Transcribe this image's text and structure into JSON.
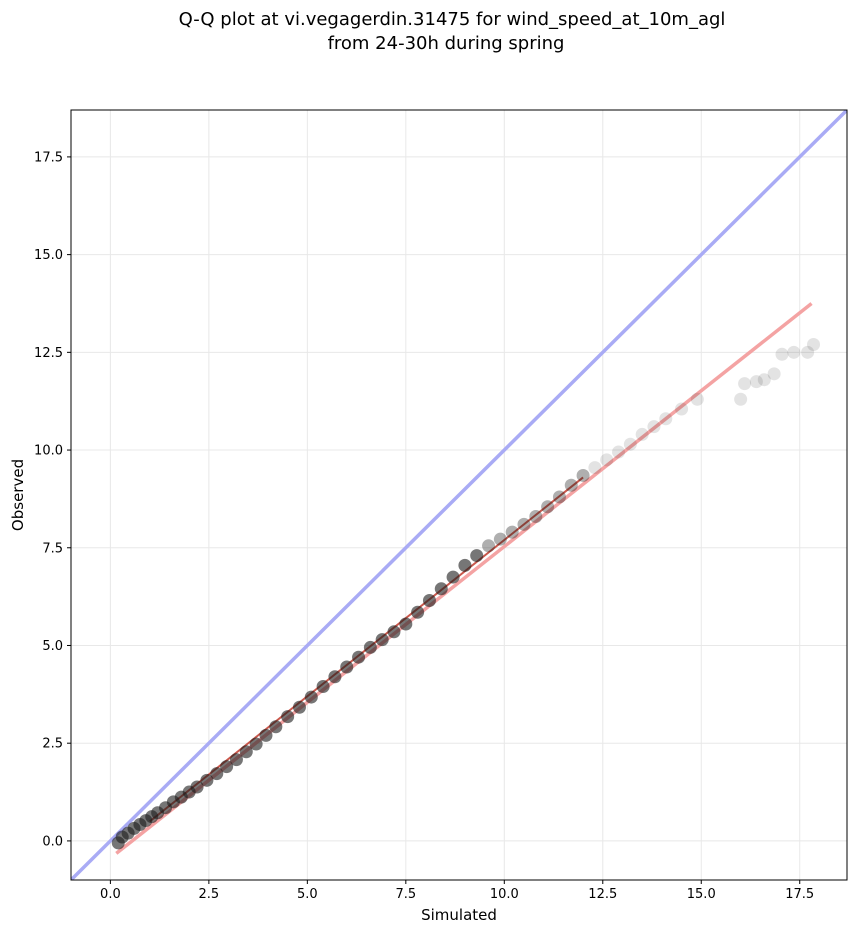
{
  "chart_data": {
    "type": "scatter",
    "title": [
      "Q-Q plot at vi.vegagerdin.31475 for wind_speed_at_10m_agl",
      "from 24-30h during spring"
    ],
    "xlabel": "Simulated",
    "ylabel": "Observed",
    "xlim": [
      -1.0,
      18.7
    ],
    "ylim": [
      -1.0,
      18.7
    ],
    "x_ticks": [
      0.0,
      2.5,
      5.0,
      7.5,
      10.0,
      12.5,
      15.0,
      17.5
    ],
    "y_ticks": [
      0.0,
      2.5,
      5.0,
      7.5,
      10.0,
      12.5,
      15.0,
      17.5
    ],
    "x_tick_labels": [
      "0.0",
      "2.5",
      "5.0",
      "7.5",
      "10.0",
      "12.5",
      "15.0",
      "17.5"
    ],
    "y_tick_labels": [
      "0.0",
      "2.5",
      "5.0",
      "7.5",
      "10.0",
      "12.5",
      "15.0",
      "17.5"
    ],
    "grid": true,
    "identity_line": {
      "color": "#a9abf5",
      "from": [
        -1.0,
        -1.0
      ],
      "to": [
        18.7,
        18.7
      ]
    },
    "fit_line": {
      "color": "#f4a3a3",
      "x": [
        0.15,
        17.8
      ],
      "y": [
        -0.32,
        13.75
      ]
    },
    "fit_center_line": {
      "color": "#c0392b",
      "x": [
        1.0,
        12.0
      ],
      "y": [
        0.5,
        9.3
      ]
    },
    "point_color": "#1a1a1a",
    "quantiles": {
      "x": [
        0.2,
        0.3,
        0.45,
        0.6,
        0.75,
        0.9,
        1.05,
        1.2,
        1.4,
        1.6,
        1.8,
        2.0,
        2.2,
        2.45,
        2.7,
        2.95,
        3.2,
        3.45,
        3.7,
        3.95,
        4.2,
        4.5,
        4.8,
        5.1,
        5.4,
        5.7,
        6.0,
        6.3,
        6.6,
        6.9,
        7.2,
        7.5,
        7.8,
        8.1,
        8.4,
        8.7,
        9.0,
        9.3,
        9.6,
        9.9,
        10.2,
        10.5,
        10.8,
        11.1,
        11.4,
        11.7,
        12.0,
        12.3,
        12.6,
        12.9,
        13.2,
        13.5,
        13.8,
        14.1,
        14.5,
        14.9,
        16.0,
        16.1,
        16.4,
        16.6,
        16.85,
        17.05,
        17.35,
        17.7,
        17.85
      ],
      "y": [
        -0.05,
        0.1,
        0.2,
        0.32,
        0.42,
        0.52,
        0.62,
        0.72,
        0.85,
        1.0,
        1.12,
        1.25,
        1.38,
        1.55,
        1.72,
        1.9,
        2.08,
        2.28,
        2.48,
        2.7,
        2.92,
        3.18,
        3.42,
        3.68,
        3.95,
        4.2,
        4.45,
        4.7,
        4.95,
        5.15,
        5.35,
        5.55,
        5.85,
        6.15,
        6.45,
        6.75,
        7.05,
        7.3,
        7.55,
        7.72,
        7.9,
        8.1,
        8.3,
        8.55,
        8.8,
        9.1,
        9.35,
        9.55,
        9.75,
        9.95,
        10.15,
        10.4,
        10.6,
        10.8,
        11.05,
        11.3,
        11.3,
        11.7,
        11.75,
        11.8,
        11.95,
        12.45,
        12.5,
        12.5,
        12.7
      ]
    }
  }
}
